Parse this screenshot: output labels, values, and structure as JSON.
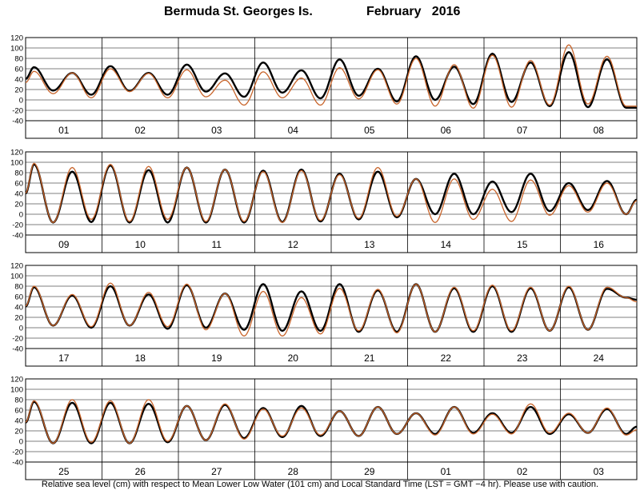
{
  "header": {
    "station": "Bermuda St. Georges Is.",
    "period": "February   2016"
  },
  "footer": {
    "note": "Relative sea level (cm) with respect to Mean Lower Low Water (101 cm) and Local Standard Time (LST = GMT −4 hr). Please use with caution."
  },
  "colors": {
    "predicted": "#000000",
    "observed": "#c8642a",
    "axis": "#000000"
  },
  "chart_data": {
    "type": "line",
    "xlabel": "",
    "ylabel": "",
    "yticks": [
      120,
      100,
      80,
      60,
      40,
      20,
      0,
      -20,
      -40
    ],
    "ylim": [
      -40,
      120
    ],
    "grid": true,
    "units": "cm",
    "series_styles": [
      {
        "key": "predicted",
        "color": "#000000",
        "width": 2.4
      },
      {
        "key": "observed",
        "color": "#c8642a",
        "width": 1.3
      }
    ],
    "panels": [
      {
        "day_labels": [
          "01",
          "02",
          "03",
          "04",
          "05",
          "06",
          "07",
          "08"
        ],
        "predicted": {
          "highs": [
            63,
            52,
            65,
            52,
            68,
            51,
            72,
            57,
            78,
            60,
            84,
            64,
            89,
            72,
            92,
            78
          ],
          "lows": [
            18,
            10,
            17,
            10,
            16,
            6,
            14,
            3,
            8,
            -3,
            0,
            -8,
            -4,
            -12,
            -14,
            -15
          ]
        },
        "observed": {
          "highs": [
            55,
            52,
            60,
            51,
            58,
            38,
            54,
            42,
            62,
            58,
            80,
            68,
            86,
            76,
            106,
            84
          ],
          "lows": [
            12,
            4,
            16,
            4,
            6,
            -10,
            4,
            -10,
            2,
            -8,
            -12,
            -16,
            -14,
            -10,
            -8,
            -12
          ]
        }
      },
      {
        "day_labels": [
          "09",
          "10",
          "11",
          "12",
          "13",
          "14",
          "15",
          "16"
        ],
        "predicted": {
          "highs": [
            96,
            82,
            94,
            85,
            90,
            86,
            84,
            86,
            78,
            82,
            68,
            78,
            63,
            78,
            60,
            64
          ],
          "lows": [
            -16,
            -15,
            -16,
            -16,
            -16,
            -16,
            -15,
            -14,
            -10,
            -6,
            0,
            0,
            4,
            6,
            8,
            0
          ],
          "end": 28
        },
        "observed": {
          "highs": [
            98,
            90,
            96,
            92,
            90,
            86,
            82,
            84,
            76,
            90,
            68,
            68,
            48,
            66,
            55,
            60
          ],
          "lows": [
            -16,
            -10,
            -14,
            -10,
            -14,
            -14,
            -16,
            -12,
            -8,
            -4,
            -16,
            -10,
            -14,
            -2,
            4,
            0
          ],
          "end": 26
        }
      },
      {
        "day_labels": [
          "17",
          "18",
          "19",
          "20",
          "21",
          "22",
          "23",
          "24"
        ],
        "predicted": {
          "highs": [
            78,
            62,
            80,
            64,
            82,
            66,
            84,
            70,
            84,
            72,
            84,
            76,
            80,
            76,
            78,
            75
          ],
          "lows": [
            4,
            0,
            4,
            -2,
            0,
            -4,
            -6,
            -6,
            -8,
            -8,
            -8,
            -8,
            -8,
            -6,
            -4,
            58
          ],
          "end": 54
        },
        "observed": {
          "highs": [
            80,
            64,
            86,
            68,
            84,
            66,
            70,
            58,
            76,
            74,
            84,
            78,
            82,
            78,
            80,
            78
          ],
          "lows": [
            4,
            2,
            4,
            2,
            -4,
            -16,
            -16,
            -12,
            -6,
            -10,
            -8,
            -6,
            -6,
            -6,
            -4,
            58
          ],
          "end": 50
        }
      },
      {
        "day_labels": [
          "25",
          "26",
          "27",
          "28",
          "29",
          "01",
          "02",
          "03"
        ],
        "predicted": {
          "highs": [
            76,
            74,
            74,
            72,
            68,
            70,
            64,
            68,
            58,
            66,
            54,
            66,
            54,
            66,
            52,
            62
          ],
          "lows": [
            -4,
            -4,
            -4,
            -2,
            2,
            6,
            8,
            10,
            10,
            14,
            14,
            16,
            16,
            14,
            16,
            14
          ],
          "end": 28
        },
        "observed": {
          "highs": [
            78,
            80,
            78,
            80,
            68,
            72,
            62,
            64,
            58,
            66,
            54,
            66,
            52,
            72,
            54,
            64
          ],
          "lows": [
            -4,
            -2,
            -4,
            0,
            2,
            4,
            10,
            12,
            10,
            14,
            12,
            14,
            14,
            16,
            16,
            12
          ],
          "end": 22
        }
      }
    ]
  }
}
